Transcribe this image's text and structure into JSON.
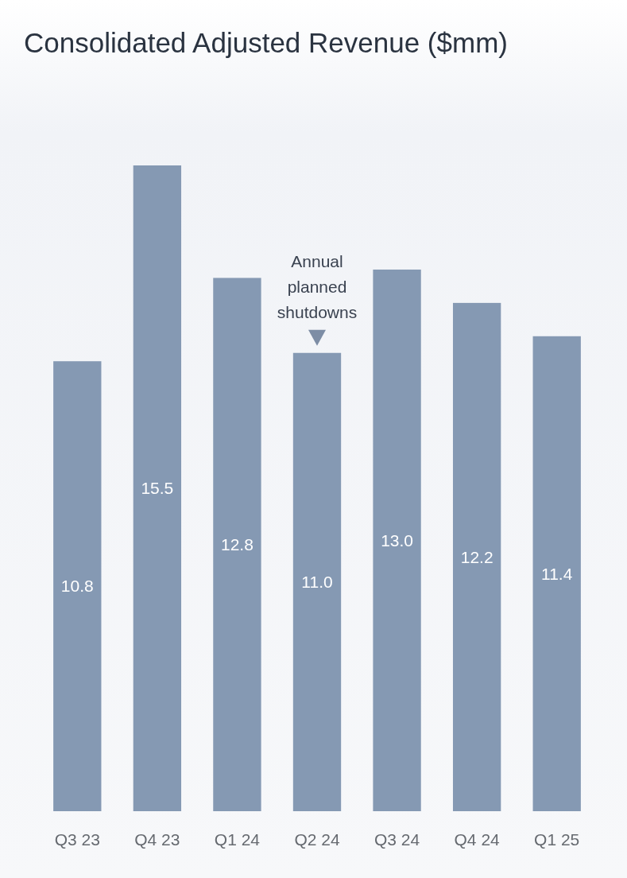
{
  "chart_data": {
    "type": "bar",
    "title": "Consolidated Adjusted Revenue ($mm)",
    "categories": [
      "Q3 23",
      "Q4 23",
      "Q1 24",
      "Q2 24",
      "Q3 24",
      "Q4 24",
      "Q1 25"
    ],
    "values": [
      10.8,
      15.5,
      12.8,
      11.0,
      13.0,
      12.2,
      11.4
    ],
    "color": "#8599b3",
    "value_labels": [
      "10.8",
      "15.5",
      "12.8",
      "11.0",
      "13.0",
      "12.2",
      "11.4"
    ],
    "annotations": [
      {
        "text": "Annual planned shutdowns",
        "x": "Q2 24",
        "y": 11.0
      }
    ]
  }
}
